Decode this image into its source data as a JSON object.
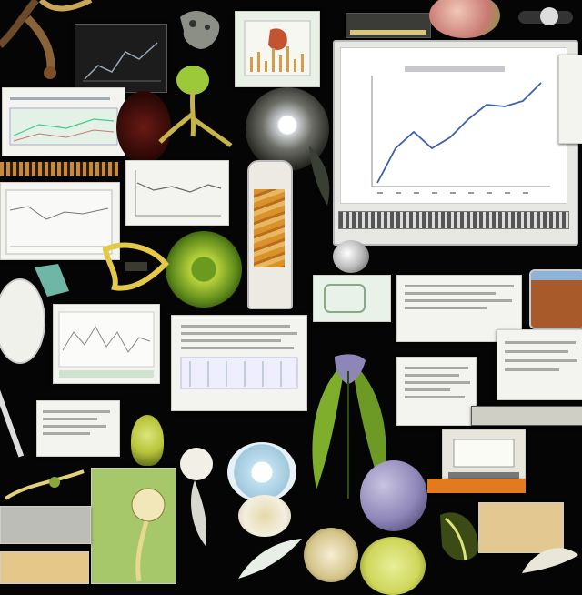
{
  "collage": {
    "description_visible_text": [],
    "main_monitor": {
      "chart_type": "line",
      "line_color": "#3a5fb0",
      "background": "#ffffff"
    },
    "palette": {
      "background": "#050505",
      "paper": "#f3f3ef",
      "leaf_green": "#7fae2c",
      "lime": "#b8d23a",
      "amber": "#d9932a",
      "lavender": "#8e86b8",
      "sky": "#bfe0f0"
    },
    "icons": [
      "monitor-icon",
      "leaf-icon",
      "magnifier-icon",
      "test-tube-icon",
      "plant-specimen-icon",
      "petri-dish-icon"
    ]
  }
}
